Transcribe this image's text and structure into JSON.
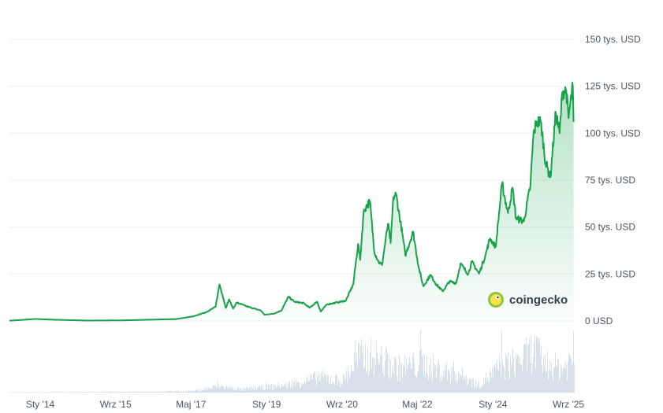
{
  "chart_data": {
    "type": "area",
    "title": "",
    "xlabel": "",
    "ylabel": "",
    "ylim": [
      0,
      150000
    ],
    "xlim": [
      "2013-04-28",
      "2025-10-15"
    ],
    "grid": true,
    "legend": "none",
    "y_ticks": [
      {
        "value": 0,
        "label": "0 USD"
      },
      {
        "value": 25000,
        "label": "25 tys. USD"
      },
      {
        "value": 50000,
        "label": "50 tys. USD"
      },
      {
        "value": 75000,
        "label": "75 tys. USD"
      },
      {
        "value": 100000,
        "label": "100 tys. USD"
      },
      {
        "value": 125000,
        "label": "125 tys. USD"
      },
      {
        "value": 150000,
        "label": "150 tys. USD"
      }
    ],
    "x_ticks": [
      {
        "date": "2014-01-01",
        "label": "Sty '14"
      },
      {
        "date": "2015-09-01",
        "label": "Wrz '15"
      },
      {
        "date": "2017-05-01",
        "label": "Maj '17"
      },
      {
        "date": "2019-01-01",
        "label": "Sty '19"
      },
      {
        "date": "2020-09-01",
        "label": "Wrz '20"
      },
      {
        "date": "2022-05-01",
        "label": "Maj '22"
      },
      {
        "date": "2024-01-01",
        "label": "Sty '24"
      },
      {
        "date": "2025-09-01",
        "label": "Wrz '25"
      }
    ],
    "series": [
      {
        "name": "",
        "color": "#16a34a",
        "fill_color": "#16a34a",
        "points": [
          [
            "2013-04-28",
            135
          ],
          [
            "2013-11-30",
            1100
          ],
          [
            "2014-01-15",
            900
          ],
          [
            "2014-06-01",
            600
          ],
          [
            "2015-01-15",
            220
          ],
          [
            "2015-11-01",
            330
          ],
          [
            "2016-06-15",
            700
          ],
          [
            "2017-01-01",
            1000
          ],
          [
            "2017-05-25",
            2500
          ],
          [
            "2017-09-01",
            4700
          ],
          [
            "2017-11-15",
            7500
          ],
          [
            "2017-12-17",
            19500
          ],
          [
            "2018-01-10",
            14000
          ],
          [
            "2018-02-06",
            6900
          ],
          [
            "2018-03-05",
            11500
          ],
          [
            "2018-04-06",
            6600
          ],
          [
            "2018-05-05",
            9800
          ],
          [
            "2018-08-01",
            7600
          ],
          [
            "2018-11-15",
            5600
          ],
          [
            "2018-12-15",
            3300
          ],
          [
            "2019-03-01",
            3900
          ],
          [
            "2019-05-01",
            5600
          ],
          [
            "2019-06-26",
            12900
          ],
          [
            "2019-08-15",
            10200
          ],
          [
            "2019-10-26",
            9500
          ],
          [
            "2019-12-15",
            7000
          ],
          [
            "2020-02-12",
            10300
          ],
          [
            "2020-03-13",
            5000
          ],
          [
            "2020-05-01",
            8800
          ],
          [
            "2020-07-26",
            9900
          ],
          [
            "2020-10-01",
            10800
          ],
          [
            "2020-11-30",
            19500
          ],
          [
            "2021-01-08",
            41000
          ],
          [
            "2021-01-25",
            32500
          ],
          [
            "2021-02-21",
            57500
          ],
          [
            "2021-03-14",
            61000
          ],
          [
            "2021-04-14",
            63500
          ],
          [
            "2021-05-19",
            37000
          ],
          [
            "2021-06-22",
            31500
          ],
          [
            "2021-07-20",
            29800
          ],
          [
            "2021-09-06",
            51800
          ],
          [
            "2021-09-28",
            41500
          ],
          [
            "2021-10-20",
            66000
          ],
          [
            "2021-11-10",
            67500
          ],
          [
            "2021-12-31",
            46500
          ],
          [
            "2022-01-24",
            35000
          ],
          [
            "2022-03-28",
            47500
          ],
          [
            "2022-05-12",
            28500
          ],
          [
            "2022-06-18",
            18500
          ],
          [
            "2022-08-15",
            24500
          ],
          [
            "2022-10-01",
            19500
          ],
          [
            "2022-11-21",
            15800
          ],
          [
            "2023-01-15",
            21000
          ],
          [
            "2023-03-10",
            20200
          ],
          [
            "2023-04-14",
            30500
          ],
          [
            "2023-06-15",
            25000
          ],
          [
            "2023-07-15",
            31500
          ],
          [
            "2023-09-11",
            25200
          ],
          [
            "2023-10-30",
            34500
          ],
          [
            "2023-12-08",
            44000
          ],
          [
            "2024-01-23",
            39500
          ],
          [
            "2024-03-14",
            73000
          ],
          [
            "2024-05-01",
            57500
          ],
          [
            "2024-06-07",
            71000
          ],
          [
            "2024-07-05",
            54500
          ],
          [
            "2024-08-05",
            54000
          ],
          [
            "2024-09-06",
            53000
          ],
          [
            "2024-10-29",
            72000
          ],
          [
            "2024-11-22",
            99000
          ],
          [
            "2024-12-17",
            106000
          ],
          [
            "2025-01-21",
            106000
          ],
          [
            "2025-02-28",
            84500
          ],
          [
            "2025-04-08",
            76500
          ],
          [
            "2025-05-22",
            111000
          ],
          [
            "2025-06-22",
            100000
          ],
          [
            "2025-07-14",
            122000
          ],
          [
            "2025-08-14",
            123000
          ],
          [
            "2025-09-01",
            108000
          ],
          [
            "2025-10-06",
            125000
          ],
          [
            "2025-10-12",
            106000
          ]
        ]
      }
    ],
    "volume": {
      "color": "#cbd5e1",
      "note_free": true,
      "points": [
        [
          "2013-04-28",
          0.5
        ],
        [
          "2014-06-01",
          0.8
        ],
        [
          "2016-01-01",
          1.2
        ],
        [
          "2017-06-01",
          3
        ],
        [
          "2017-12-17",
          12
        ],
        [
          "2018-06-01",
          6
        ],
        [
          "2019-06-01",
          14
        ],
        [
          "2020-03-13",
          30
        ],
        [
          "2020-09-01",
          22
        ],
        [
          "2021-01-08",
          68
        ],
        [
          "2021-05-19",
          70
        ],
        [
          "2021-11-10",
          48
        ],
        [
          "2022-06-18",
          55
        ],
        [
          "2022-11-21",
          42
        ],
        [
          "2023-03-10",
          40
        ],
        [
          "2023-09-01",
          14
        ],
        [
          "2024-03-14",
          52
        ],
        [
          "2024-08-05",
          60
        ],
        [
          "2024-11-22",
          82
        ],
        [
          "2025-03-01",
          55
        ],
        [
          "2025-07-14",
          48
        ],
        [
          "2025-10-12",
          66
        ]
      ]
    }
  },
  "watermark": {
    "text": "coingecko",
    "icon": "gecko-logo-icon"
  }
}
